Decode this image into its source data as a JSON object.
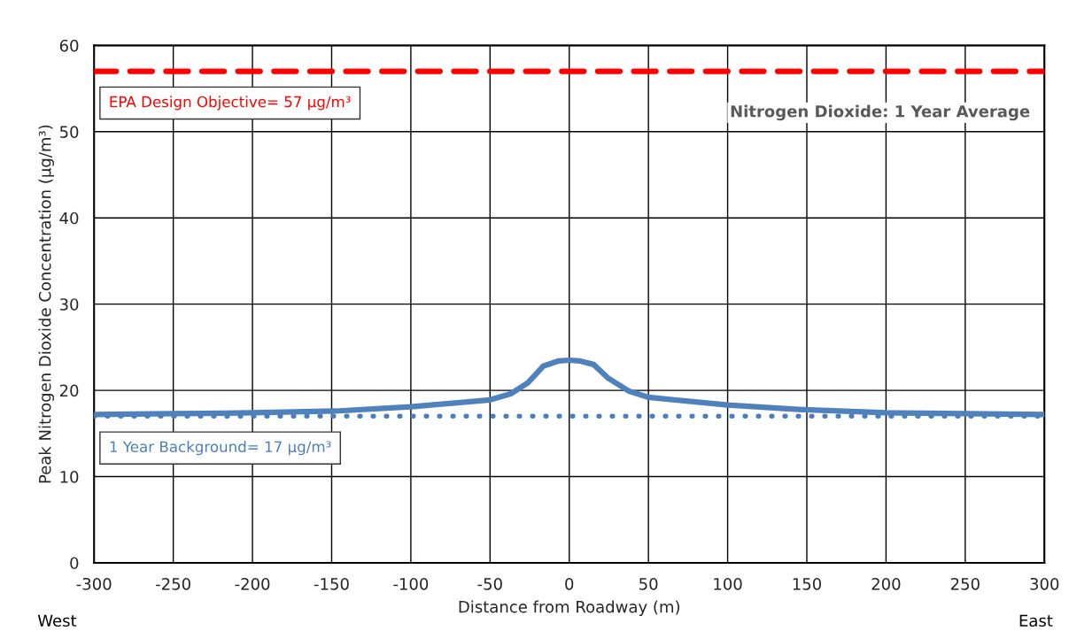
{
  "chart_data": {
    "type": "line",
    "xlabel": "Distance from Roadway (m)",
    "ylabel": "Peak Nitrogen Dioxide Concentration (µg/m³)",
    "x": [
      -300,
      -250,
      -200,
      -147.6,
      -100,
      -50,
      -37,
      -26,
      -16.5,
      -7,
      0,
      7,
      15.4,
      24.7,
      37.8,
      50,
      100,
      144.6,
      200,
      250,
      300
    ],
    "series": [
      {
        "color": "#4f81bd",
        "values": [
          17.2,
          17.3,
          17.4,
          17.6,
          18.1,
          18.9,
          19.6,
          20.9,
          22.8,
          23.4,
          23.5,
          23.4,
          23.0,
          21.4,
          19.9,
          19.2,
          18.3,
          17.8,
          17.4,
          17.3,
          17.2
        ]
      }
    ],
    "xlim": [
      -300,
      300
    ],
    "xticks": [
      -300,
      -250,
      -200,
      -150,
      -100,
      -50,
      0,
      50,
      100,
      150,
      200,
      250,
      300
    ],
    "ylim": [
      0,
      60
    ],
    "yticks": [
      0,
      10,
      20,
      30,
      40,
      50,
      60
    ],
    "ref_lines": [
      {
        "axis": "y",
        "value": 57,
        "label": "EPA Design Objective= 57 µg/m³",
        "color": "#ff0000",
        "line_style": "dashed"
      },
      {
        "axis": "y",
        "value": 17,
        "label": "1 Year Background= 17 µg/m³",
        "color": "#4a7ebb",
        "line_style": "dotted"
      }
    ],
    "annotations": [
      "Nitrogen Dioxide: 1 Year Average",
      "West",
      "East"
    ],
    "grid": true,
    "legend": false,
    "line_style": "solid",
    "marker": "none"
  }
}
